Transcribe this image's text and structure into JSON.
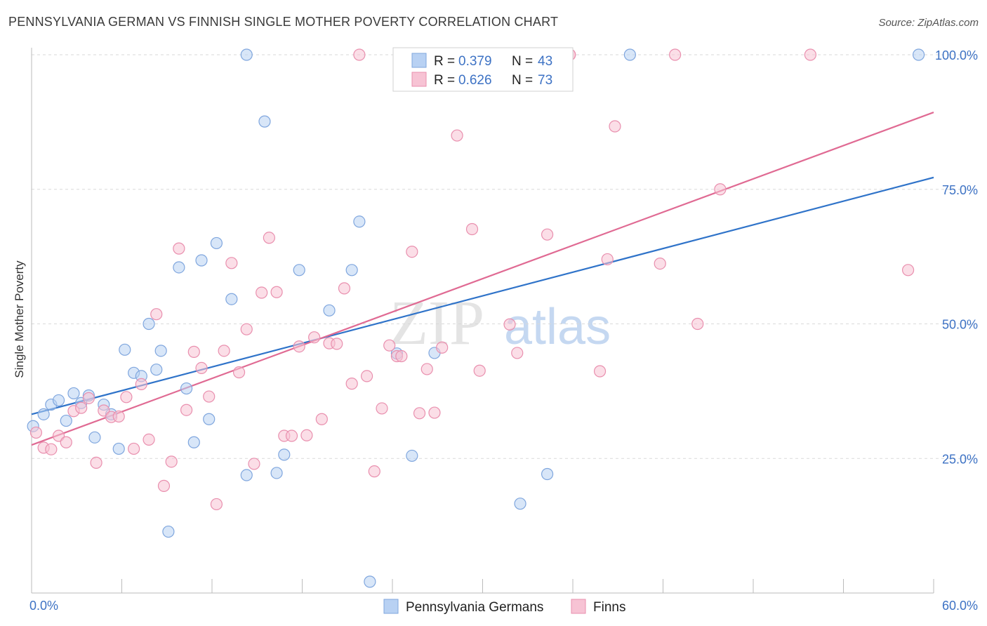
{
  "title": "PENNSYLVANIA GERMAN VS FINNISH SINGLE MOTHER POVERTY CORRELATION CHART",
  "source": "Source: ZipAtlas.com",
  "watermark": {
    "zip": "ZIP",
    "atlas": "atlas"
  },
  "colors": {
    "blue_fill": "#b8d1f3",
    "blue_stroke": "#7fa6de",
    "blue_line": "#2f73c9",
    "pink_fill": "#f7c3d4",
    "pink_stroke": "#e98fae",
    "pink_line": "#e06a93",
    "tick_text": "#3d72c4",
    "grid": "#d9d9d9"
  },
  "legend": {
    "rows": [
      {
        "r_label": "R = ",
        "r_value": "0.379",
        "n_label": "N = ",
        "n_value": "43",
        "color": "blue"
      },
      {
        "r_label": "R = ",
        "r_value": "0.626",
        "n_label": "N = ",
        "n_value": "73",
        "color": "pink"
      }
    ]
  },
  "chart_data": {
    "type": "scatter",
    "xlabel": "",
    "ylabel": "Single Mother Poverty",
    "xlim": [
      0,
      60
    ],
    "ylim": [
      0,
      100
    ],
    "x_tick_labels": [
      "0.0%",
      "60.0%"
    ],
    "y_ticks": [
      25,
      50,
      75,
      100
    ],
    "y_tick_labels": [
      "25.0%",
      "50.0%",
      "75.0%",
      "100.0%"
    ],
    "grid": "horizontal dashed",
    "legend_position": "top-center",
    "series": [
      {
        "name": "Pennsylvania Germans",
        "color": "blue",
        "trend": {
          "x": [
            0,
            60
          ],
          "y": [
            33.2,
            77.2
          ]
        },
        "points": [
          [
            0.1,
            31.0
          ],
          [
            0.8,
            33.2
          ],
          [
            1.3,
            35.0
          ],
          [
            1.8,
            35.8
          ],
          [
            2.3,
            32.0
          ],
          [
            2.8,
            37.1
          ],
          [
            3.3,
            35.3
          ],
          [
            3.8,
            36.7
          ],
          [
            4.2,
            28.9
          ],
          [
            4.8,
            35.0
          ],
          [
            5.3,
            33.2
          ],
          [
            5.8,
            26.8
          ],
          [
            6.2,
            45.2
          ],
          [
            6.8,
            40.9
          ],
          [
            7.3,
            40.3
          ],
          [
            7.8,
            50.0
          ],
          [
            8.3,
            41.5
          ],
          [
            8.6,
            45.0
          ],
          [
            9.1,
            11.4
          ],
          [
            9.8,
            60.5
          ],
          [
            10.3,
            38.0
          ],
          [
            10.8,
            28.0
          ],
          [
            11.3,
            61.8
          ],
          [
            11.8,
            32.3
          ],
          [
            12.3,
            65.0
          ],
          [
            13.3,
            54.6
          ],
          [
            14.3,
            21.9
          ],
          [
            15.5,
            87.6
          ],
          [
            16.3,
            22.3
          ],
          [
            16.8,
            25.7
          ],
          [
            17.8,
            60.0
          ],
          [
            19.8,
            52.5
          ],
          [
            21.3,
            60.0
          ],
          [
            21.8,
            69.0
          ],
          [
            22.5,
            2.1
          ],
          [
            24.3,
            44.5
          ],
          [
            25.3,
            25.5
          ],
          [
            26.8,
            44.6
          ],
          [
            32.5,
            16.6
          ],
          [
            34.3,
            22.1
          ],
          [
            39.8,
            100.0
          ],
          [
            59.0,
            100.0
          ],
          [
            14.3,
            100.0
          ]
        ]
      },
      {
        "name": "Finns",
        "color": "pink",
        "trend": {
          "x": [
            0,
            60
          ],
          "y": [
            27.5,
            89.3
          ]
        },
        "points": [
          [
            0.3,
            29.8
          ],
          [
            0.8,
            27.0
          ],
          [
            1.3,
            26.7
          ],
          [
            1.8,
            29.2
          ],
          [
            2.3,
            28.0
          ],
          [
            2.8,
            33.8
          ],
          [
            3.3,
            34.4
          ],
          [
            3.8,
            36.2
          ],
          [
            4.3,
            24.2
          ],
          [
            4.8,
            33.9
          ],
          [
            5.3,
            32.7
          ],
          [
            5.8,
            32.8
          ],
          [
            6.3,
            36.4
          ],
          [
            6.8,
            26.8
          ],
          [
            7.3,
            38.8
          ],
          [
            7.8,
            28.5
          ],
          [
            8.3,
            51.8
          ],
          [
            8.8,
            19.9
          ],
          [
            9.3,
            24.4
          ],
          [
            9.8,
            64.0
          ],
          [
            10.3,
            34.0
          ],
          [
            10.8,
            44.8
          ],
          [
            11.3,
            41.8
          ],
          [
            11.8,
            36.5
          ],
          [
            12.3,
            16.5
          ],
          [
            12.8,
            45.0
          ],
          [
            13.3,
            61.3
          ],
          [
            13.8,
            41.0
          ],
          [
            14.3,
            49.0
          ],
          [
            14.8,
            24.0
          ],
          [
            15.3,
            55.8
          ],
          [
            15.8,
            66.0
          ],
          [
            16.3,
            55.9
          ],
          [
            16.8,
            29.2
          ],
          [
            17.3,
            29.2
          ],
          [
            17.8,
            45.8
          ],
          [
            18.3,
            29.3
          ],
          [
            18.8,
            47.5
          ],
          [
            19.3,
            32.3
          ],
          [
            19.8,
            46.4
          ],
          [
            20.3,
            46.3
          ],
          [
            20.8,
            56.6
          ],
          [
            21.3,
            38.9
          ],
          [
            22.3,
            40.3
          ],
          [
            22.8,
            22.6
          ],
          [
            23.3,
            34.3
          ],
          [
            23.8,
            46.0
          ],
          [
            24.3,
            44.0
          ],
          [
            24.6,
            44.0
          ],
          [
            25.3,
            63.4
          ],
          [
            25.8,
            33.4
          ],
          [
            26.3,
            41.6
          ],
          [
            26.8,
            33.5
          ],
          [
            27.3,
            45.6
          ],
          [
            28.3,
            85.0
          ],
          [
            29.3,
            67.6
          ],
          [
            29.8,
            41.3
          ],
          [
            31.8,
            49.9
          ],
          [
            32.3,
            44.6
          ],
          [
            34.3,
            66.6
          ],
          [
            35.8,
            100.0
          ],
          [
            37.8,
            41.2
          ],
          [
            38.3,
            62.0
          ],
          [
            38.8,
            86.7
          ],
          [
            41.8,
            61.2
          ],
          [
            42.8,
            100.0
          ],
          [
            44.3,
            50.0
          ],
          [
            45.8,
            75.0
          ],
          [
            51.8,
            100.0
          ],
          [
            58.3,
            60.0
          ],
          [
            21.8,
            100.0
          ],
          [
            35.8,
            100.0
          ],
          [
            33.3,
            100.0
          ]
        ]
      }
    ]
  }
}
